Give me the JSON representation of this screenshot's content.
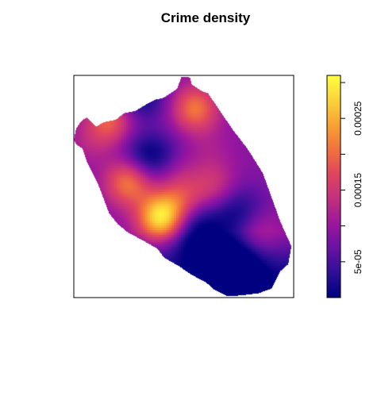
{
  "chart_data": {
    "type": "heatmap",
    "title": "Crime density",
    "xlabel": "",
    "ylabel": "",
    "grid": false,
    "legend_position": "right",
    "colorbar": {
      "range": [
        0,
        0.00031
      ],
      "tick_values": [
        5e-05,
        0.0001,
        0.00015,
        0.0002,
        0.00025,
        0.0003
      ],
      "labels": [
        {
          "value": 5e-05,
          "text": "5e-05"
        },
        {
          "value": 0.00015,
          "text": "0.00015"
        },
        {
          "value": 0.00025,
          "text": "0.00025"
        }
      ],
      "palette": [
        "#000080",
        "#2e0f96",
        "#6a12a4",
        "#9c179e",
        "#c4307e",
        "#e0455f",
        "#f2713e",
        "#f9a233",
        "#fbd33a",
        "#ffff40"
      ]
    },
    "hotspots": [
      {
        "x": 0.4,
        "y": 0.36,
        "density": 0.0003
      },
      {
        "x": 0.25,
        "y": 0.52,
        "density": 0.00022
      },
      {
        "x": 0.55,
        "y": 0.85,
        "density": 0.00021
      },
      {
        "x": 0.17,
        "y": 0.8,
        "density": 0.0002
      },
      {
        "x": 0.5,
        "y": 0.45,
        "density": 0.00016
      },
      {
        "x": 0.64,
        "y": 0.5,
        "density": 0.00015
      },
      {
        "x": 0.35,
        "y": 0.73,
        "density": 0.00013
      },
      {
        "x": 0.83,
        "y": 0.3,
        "density": 0.00014
      },
      {
        "x": 0.08,
        "y": 0.7,
        "density": 0.00012
      },
      {
        "x": 0.62,
        "y": 0.66,
        "density": 0.00011
      },
      {
        "x": 0.45,
        "y": 0.58,
        "density": 0.00012
      },
      {
        "x": 0.72,
        "y": 0.18,
        "density": 0.0001
      }
    ],
    "coldspots": [
      {
        "x": 0.7,
        "y": 0.12,
        "depth": 0.00018
      },
      {
        "x": 0.35,
        "y": 0.65,
        "depth": 0.00012
      },
      {
        "x": 0.55,
        "y": 0.3,
        "depth": 0.0001
      },
      {
        "x": 0.75,
        "y": 0.38,
        "depth": 8e-05
      },
      {
        "x": 0.3,
        "y": 0.9,
        "depth": 8e-05
      }
    ]
  }
}
